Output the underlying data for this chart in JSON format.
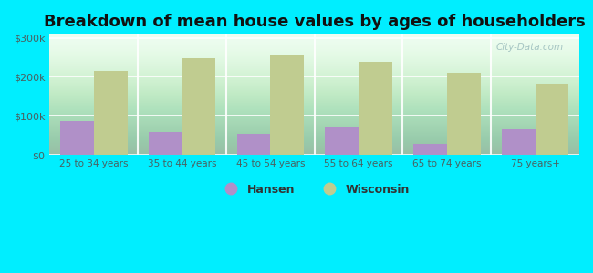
{
  "title": "Breakdown of mean house values by ages of householders",
  "categories": [
    "25 to 34 years",
    "35 to 44 years",
    "45 to 54 years",
    "55 to 64 years",
    "65 to 74 years",
    "75 years+"
  ],
  "hansen_values": [
    87000,
    60000,
    55000,
    70000,
    28000,
    65000
  ],
  "wisconsin_values": [
    215000,
    248000,
    258000,
    238000,
    210000,
    183000
  ],
  "hansen_color": "#b090c8",
  "wisconsin_color": "#c0cc90",
  "ylim": [
    0,
    310000
  ],
  "yticks": [
    0,
    100000,
    200000,
    300000
  ],
  "ytick_labels": [
    "$0",
    "$100k",
    "$200k",
    "$300k"
  ],
  "legend_hansen": "Hansen",
  "legend_wisconsin": "Wisconsin",
  "bg_color": "#00EEFF",
  "watermark": "City-Data.com",
  "title_fontsize": 13,
  "bar_width": 0.38
}
